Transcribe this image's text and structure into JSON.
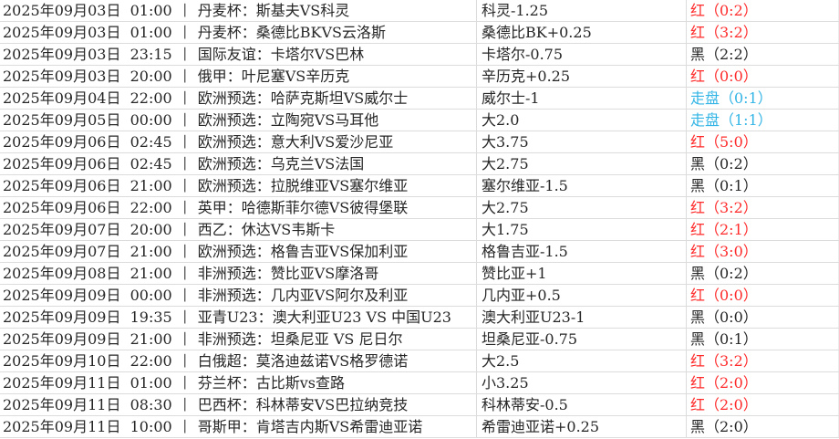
{
  "colors": {
    "red": "#ff2b2b",
    "black": "#262626",
    "push": "#33b5e5",
    "gridline": "#dcdcdc",
    "background": "#ffffff"
  },
  "table": {
    "separator": "丨",
    "rows": [
      {
        "datetime": "2025年09月03日  01:00",
        "match": "丹麦杯：斯基夫VS科灵",
        "pick": "科灵-1.25",
        "result": "红（0:2）",
        "result_type": "red"
      },
      {
        "datetime": "2025年09月03日  01:00",
        "match": "丹麦杯：桑德比BKVS云洛斯",
        "pick": "桑德比BK+0.25",
        "result": "红（3:2）",
        "result_type": "red"
      },
      {
        "datetime": "2025年09月03日  23:15",
        "match": "国际友谊：卡塔尔VS巴林",
        "pick": "卡塔尔-0.75",
        "result": "黑（2:2）",
        "result_type": "black"
      },
      {
        "datetime": "2025年09月03日  20:00",
        "match": "俄甲：叶尼塞VS辛历克",
        "pick": "辛历克+0.25",
        "result": "红（0:0）",
        "result_type": "red"
      },
      {
        "datetime": "2025年09月04日  22:00",
        "match": "欧洲预选：哈萨克斯坦VS威尔士",
        "pick": "威尔士-1",
        "result": "走盘（0:1）",
        "result_type": "push"
      },
      {
        "datetime": "2025年09月05日  00:00",
        "match": "欧洲预选：立陶宛VS马耳他",
        "pick": "大2.0",
        "result": "走盘（1:1）",
        "result_type": "push"
      },
      {
        "datetime": "2025年09月06日  02:45",
        "match": "欧洲预选：意大利VS爱沙尼亚",
        "pick": "大3.75",
        "result": "红（5:0）",
        "result_type": "red"
      },
      {
        "datetime": "2025年09月06日  02:45",
        "match": "欧洲预选：乌克兰VS法国",
        "pick": "大2.75",
        "result": "黑（0:2）",
        "result_type": "black"
      },
      {
        "datetime": "2025年09月06日  21:00",
        "match": "欧洲预选：拉脱维亚VS塞尔维亚",
        "pick": "塞尔维亚-1.5",
        "result": "黑（0:1）",
        "result_type": "black"
      },
      {
        "datetime": "2025年09月06日  22:00",
        "match": "英甲：哈德斯菲尔德VS彼得堡联",
        "pick": "大2.75",
        "result": "红（3:2）",
        "result_type": "red"
      },
      {
        "datetime": "2025年09月07日  20:00",
        "match": "西乙：休达VS韦斯卡",
        "pick": "大1.75",
        "result": "红（2:1）",
        "result_type": "red"
      },
      {
        "datetime": "2025年09月07日  21:00",
        "match": "欧洲预选：格鲁吉亚VS保加利亚",
        "pick": "格鲁吉亚-1.5",
        "result": "红（3:0）",
        "result_type": "red"
      },
      {
        "datetime": "2025年09月08日  21:00",
        "match": "非洲预选：赞比亚VS摩洛哥",
        "pick": "赞比亚+1",
        "result": "黑（0:2）",
        "result_type": "black"
      },
      {
        "datetime": "2025年09月09日  00:00",
        "match": "非洲预选：几内亚VS阿尔及利亚",
        "pick": "几内亚+0.5",
        "result": "红（0:0）",
        "result_type": "red"
      },
      {
        "datetime": "2025年09月09日  19:35",
        "match": "亚青U23：澳大利亚U23 VS 中国U23",
        "pick": "澳大利亚U23-1",
        "result": "黑（0:0）",
        "result_type": "black"
      },
      {
        "datetime": "2025年09月09日  21:00",
        "match": "非洲预选：坦桑尼亚 VS 尼日尔",
        "pick": "坦桑尼亚-0.75",
        "result": "黑（0:1）",
        "result_type": "black"
      },
      {
        "datetime": "2025年09月10日  22:00",
        "match": "白俄超：莫洛迪兹诺VS格罗德诺",
        "pick": "大2.5",
        "result": "红（3:2）",
        "result_type": "red"
      },
      {
        "datetime": "2025年09月11日  01:00",
        "match": "芬兰杯：古比斯vs查路",
        "pick": "小3.25",
        "result": "红（2:0）",
        "result_type": "red"
      },
      {
        "datetime": "2025年09月11日  08:30",
        "match": "巴西杯：科林蒂安VS巴拉纳竞技",
        "pick": "科林蒂安-0.5",
        "result": "红（2:0）",
        "result_type": "red"
      },
      {
        "datetime": "2025年09月11日  10:00",
        "match": "哥斯甲：肯塔吉内斯VS希雷迪亚诺",
        "pick": "希雷迪亚诺+0.25",
        "result": "黑（2:0）",
        "result_type": "black"
      }
    ]
  }
}
